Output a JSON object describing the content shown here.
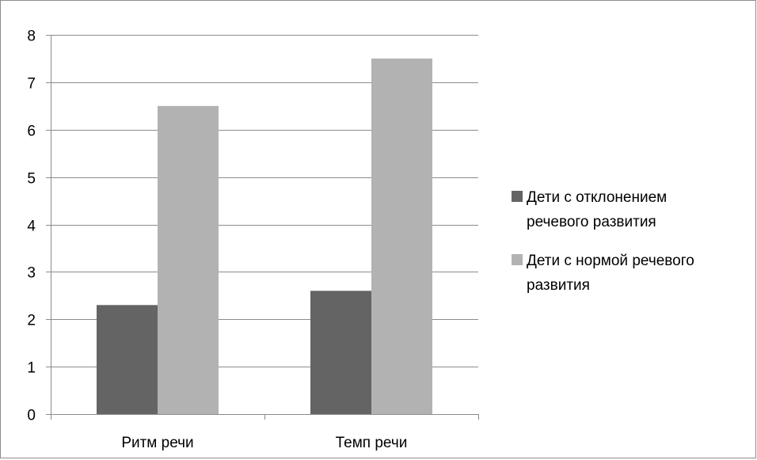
{
  "chart_data": {
    "type": "bar",
    "categories": [
      "Ритм речи",
      "Темп речи"
    ],
    "series": [
      {
        "name": "Дети с отклонением речевого развития",
        "legend_lines": [
          "Дети с отклонением",
          "речевого развития"
        ],
        "color": "#646464",
        "values": [
          2.3,
          2.6
        ]
      },
      {
        "name": "Дети с нормой речевого развития",
        "legend_lines": [
          "Дети с нормой речевого",
          "развития"
        ],
        "color": "#b2b2b2",
        "values": [
          6.5,
          7.5
        ]
      }
    ],
    "title": "",
    "xlabel": "",
    "ylabel": "",
    "ylim": [
      0,
      8
    ],
    "yticks": [
      "0",
      "1",
      "2",
      "3",
      "4",
      "5",
      "6",
      "7",
      "8"
    ],
    "grid": true,
    "legend_position": "right"
  }
}
